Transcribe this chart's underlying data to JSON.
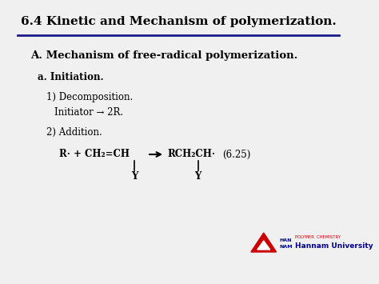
{
  "title": "6.4 Kinetic and Mechanism of polymerization.",
  "title_fontsize": 11,
  "title_color": "#000000",
  "bg_color": "#f0f0f0",
  "line_color": "#1a1a8c",
  "section_A": "A. Mechanism of free-radical polymerization.",
  "section_a": "a. Initiation.",
  "item1_line1": "1) Decomposition.",
  "item1_line2": "Initiator → 2R.",
  "item2": "2) Addition.",
  "equation_left": "R· + CH₂=CH",
  "equation_right": "RCH₂CH·",
  "equation_label": "(6.25)",
  "sub_Y": "Y",
  "logo_text1": "POLYMER  CHEMISTRY",
  "logo_text2": "Hannam University",
  "logo_color1": "#cc0000",
  "logo_color2": "#00008b",
  "han_nan": "HAN\nNAM",
  "content_fontsize": 8.5,
  "eq_fontsize": 8.5
}
